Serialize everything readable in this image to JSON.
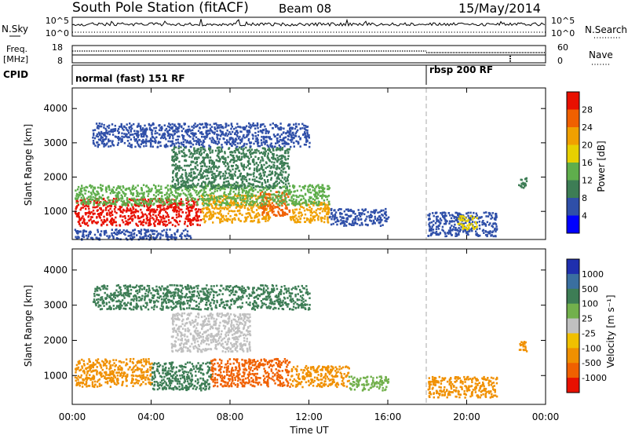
{
  "header": {
    "station": "South Pole Station (fitACF)",
    "beam": "Beam 08",
    "date": "15/May/2014"
  },
  "nsky_panel": {
    "left_label": "N.Sky",
    "right_label": "N.Search",
    "left_ticks": [
      "10^5",
      "10^0"
    ],
    "right_ticks": [
      "10^5",
      "10^0"
    ]
  },
  "freq_panel": {
    "left_label_1": "Freq.",
    "left_label_2": "[MHz]",
    "right_label": "Nave",
    "left_ticks": [
      "18",
      "8"
    ],
    "right_ticks": [
      "60",
      "0"
    ]
  },
  "cpid_panel": {
    "label": "CPID",
    "modes": [
      {
        "label": "normal (fast) 151 RF",
        "start_hour": 0
      },
      {
        "label": "rbsp 200 RF",
        "start_hour": 18
      }
    ]
  },
  "x_axis": {
    "label": "Time UT",
    "ticks": [
      "00:00",
      "04:00",
      "08:00",
      "12:00",
      "16:00",
      "20:00",
      "00:00"
    ],
    "tick_hours": [
      0,
      4,
      8,
      12,
      16,
      20,
      24
    ],
    "range": [
      0,
      24
    ]
  },
  "chart_data": [
    {
      "type": "heatmap",
      "name": "power",
      "ylabel": "Slant Range [km]",
      "ylim": [
        180,
        4600
      ],
      "y_ticks": [
        1000,
        2000,
        3000,
        4000
      ],
      "colorbar": {
        "label": "Power [dB]",
        "tick_values": [
          4,
          8,
          12,
          16,
          20,
          24,
          28
        ],
        "tick_labels": [
          "4",
          "8",
          "12",
          "16",
          "20",
          "24",
          "28"
        ],
        "range": [
          0,
          32
        ],
        "colors": [
          "#0000ff",
          "#2f4fa8",
          "#3d7d55",
          "#5fae4c",
          "#e7d000",
          "#f0a000",
          "#f06000",
          "#e81000"
        ]
      },
      "cells": [
        {
          "t": [
            0.1,
            6.5
          ],
          "r": [
            600,
            1400
          ],
          "value": 28
        },
        {
          "t": [
            6.5,
            10.0
          ],
          "r": [
            700,
            1500
          ],
          "value": 22
        },
        {
          "t": [
            9.5,
            11.0
          ],
          "r": [
            900,
            1600
          ],
          "value": 27
        },
        {
          "t": [
            11.0,
            13.0
          ],
          "r": [
            700,
            1300
          ],
          "value": 20
        },
        {
          "t": [
            0.1,
            13.0
          ],
          "r": [
            1200,
            1800
          ],
          "value": 13
        },
        {
          "t": [
            13.0,
            16.0
          ],
          "r": [
            600,
            1100
          ],
          "value": 6
        },
        {
          "t": [
            5.0,
            11.0
          ],
          "r": [
            1700,
            2900
          ],
          "value": 11
        },
        {
          "t": [
            1.0,
            12.0
          ],
          "r": [
            2900,
            3600
          ],
          "value": 6
        },
        {
          "t": [
            18.0,
            21.5
          ],
          "r": [
            300,
            1000
          ],
          "value": 7
        },
        {
          "t": [
            19.5,
            20.5
          ],
          "r": [
            500,
            900
          ],
          "value": 18
        },
        {
          "t": [
            22.6,
            23.0
          ],
          "r": [
            1700,
            2000
          ],
          "value": 8
        },
        {
          "t": [
            0.1,
            6.0
          ],
          "r": [
            200,
            500
          ],
          "value": 5
        }
      ]
    },
    {
      "type": "heatmap",
      "name": "velocity",
      "ylabel": "Slant Range [km]",
      "ylim": [
        180,
        4600
      ],
      "y_ticks": [
        1000,
        2000,
        3000,
        4000
      ],
      "colorbar": {
        "label": "Velocity [m s⁻¹]",
        "tick_labels": [
          "1000",
          "500",
          "100",
          "25",
          "-25",
          "-100",
          "-500",
          "-1000"
        ],
        "colors_top_to_bottom": [
          "#1f2fae",
          "#3a6fa0",
          "#3d7d55",
          "#72b04c",
          "#c0c0c0",
          "#f0c000",
          "#f09000",
          "#f06000",
          "#e81000"
        ]
      },
      "cells": [
        {
          "t": [
            0.1,
            4.0
          ],
          "r": [
            700,
            1500
          ],
          "value": -300
        },
        {
          "t": [
            4.0,
            7.0
          ],
          "r": [
            600,
            1400
          ],
          "value": 200
        },
        {
          "t": [
            7.0,
            11.0
          ],
          "r": [
            700,
            1500
          ],
          "value": -600
        },
        {
          "t": [
            11.0,
            14.0
          ],
          "r": [
            700,
            1300
          ],
          "value": -150
        },
        {
          "t": [
            5.0,
            9.0
          ],
          "r": [
            1700,
            2800
          ],
          "value": 0
        },
        {
          "t": [
            14.0,
            16.0
          ],
          "r": [
            600,
            1000
          ],
          "value": 60
        },
        {
          "t": [
            18.0,
            21.5
          ],
          "r": [
            400,
            1000
          ],
          "value": -200
        },
        {
          "t": [
            22.6,
            23.0
          ],
          "r": [
            1700,
            2000
          ],
          "value": -300
        },
        {
          "t": [
            1.0,
            12.0
          ],
          "r": [
            2900,
            3600
          ],
          "value": 300
        }
      ]
    }
  ]
}
